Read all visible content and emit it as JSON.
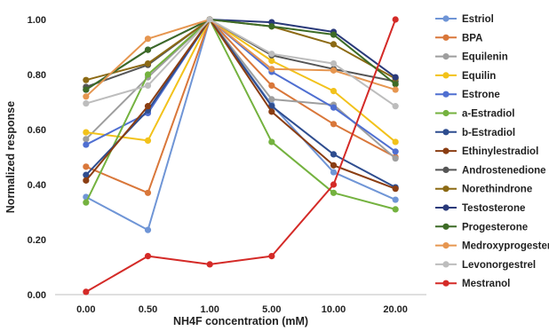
{
  "chart_data": {
    "type": "line",
    "xlabel": "NH4F concentration (mM)",
    "ylabel": "Normalized response",
    "categories": [
      "0.00",
      "0.50",
      "1.00",
      "5.00",
      "10.00",
      "20.00"
    ],
    "ylim": [
      0,
      1
    ],
    "yticks": [
      "0.00",
      "0.20",
      "0.40",
      "0.60",
      "0.80",
      "1.00"
    ],
    "grid": false,
    "legend": "right",
    "series": [
      {
        "name": "Estriol",
        "color": "#6f95d6",
        "values": [
          0.355,
          0.235,
          1.0,
          0.69,
          0.445,
          0.345
        ]
      },
      {
        "name": "BPA",
        "color": "#d9773a",
        "values": [
          0.465,
          0.37,
          1.0,
          0.76,
          0.62,
          0.5
        ]
      },
      {
        "name": "Equilenin",
        "color": "#9e9e9e",
        "values": [
          0.565,
          0.79,
          1.0,
          0.71,
          0.69,
          0.495
        ]
      },
      {
        "name": "Equilin",
        "color": "#f2c21b",
        "values": [
          0.59,
          0.56,
          1.0,
          0.85,
          0.74,
          0.555
        ]
      },
      {
        "name": "Estrone",
        "color": "#4f6fd1",
        "values": [
          0.545,
          0.66,
          1.0,
          0.81,
          0.68,
          0.52
        ]
      },
      {
        "name": "a-Estradiol",
        "color": "#74b23f",
        "values": [
          0.335,
          0.8,
          1.0,
          0.555,
          0.37,
          0.31
        ]
      },
      {
        "name": "b-Estradiol",
        "color": "#2e4d8f",
        "values": [
          0.435,
          0.67,
          1.0,
          0.685,
          0.51,
          0.39
        ]
      },
      {
        "name": "Ethinylestradiol",
        "color": "#8a3d12",
        "values": [
          0.415,
          0.685,
          1.0,
          0.665,
          0.47,
          0.385
        ]
      },
      {
        "name": "Androstenedione",
        "color": "#555555",
        "values": [
          0.755,
          0.835,
          1.0,
          0.87,
          0.82,
          0.775
        ]
      },
      {
        "name": "Norethindrone",
        "color": "#8c6a14",
        "values": [
          0.78,
          0.84,
          1.0,
          0.975,
          0.91,
          0.785
        ]
      },
      {
        "name": "Testosterone",
        "color": "#2a3a7a",
        "values": [
          0.745,
          0.89,
          1.0,
          0.99,
          0.955,
          0.79
        ]
      },
      {
        "name": "Progesterone",
        "color": "#3d6b26",
        "values": [
          0.745,
          0.89,
          1.0,
          0.975,
          0.945,
          0.765
        ]
      },
      {
        "name": "Medroxyprogesterone",
        "color": "#e69650",
        "values": [
          0.72,
          0.93,
          1.0,
          0.82,
          0.815,
          0.745
        ]
      },
      {
        "name": "Levonorgestrel",
        "color": "#bdbdbd",
        "values": [
          0.695,
          0.76,
          1.0,
          0.875,
          0.84,
          0.685
        ]
      },
      {
        "name": "Mestranol",
        "color": "#d42a27",
        "values": [
          0.01,
          0.14,
          0.11,
          0.14,
          0.4,
          1.0
        ]
      }
    ]
  }
}
